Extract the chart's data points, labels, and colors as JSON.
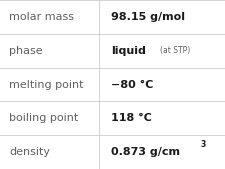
{
  "rows": [
    {
      "label": "molar mass",
      "value": "98.15 g/mol",
      "special": null,
      "superscript": false
    },
    {
      "label": "phase",
      "value": "liquid",
      "special": "(at STP)",
      "superscript": false
    },
    {
      "label": "melting point",
      "value": "−80 °C",
      "special": null,
      "superscript": false
    },
    {
      "label": "boiling point",
      "value": "118 °C",
      "special": null,
      "superscript": false
    },
    {
      "label": "density",
      "value": "0.873 g/cm",
      "special": "3",
      "superscript": true
    }
  ],
  "col_split": 0.44,
  "bg_color": "#ffffff",
  "line_color": "#cccccc",
  "label_fontsize": 8.0,
  "value_fontsize": 8.0,
  "small_fontsize": 5.5,
  "label_color": "#606060",
  "value_color": "#1a1a1a"
}
